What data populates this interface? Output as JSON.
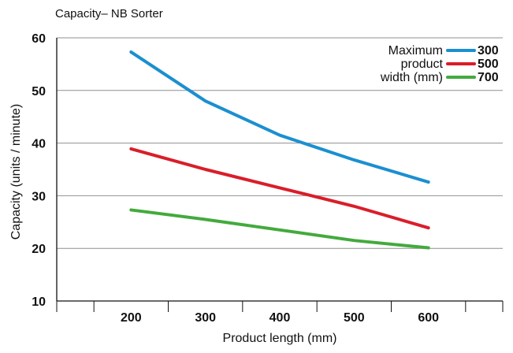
{
  "chart_data": {
    "type": "line",
    "title": "Capacity– NB Sorter",
    "xlabel": "Product length (mm)",
    "ylabel": "Capacity (units / minute)",
    "x": [
      200,
      300,
      400,
      500,
      600
    ],
    "xlim": [
      100,
      700
    ],
    "ylim": [
      10,
      60
    ],
    "yticks": [
      10,
      20,
      30,
      40,
      50,
      60
    ],
    "grid": true,
    "legend_title": [
      "Maximum",
      "product",
      "width (mm)"
    ],
    "legend_position": "top-right",
    "series": [
      {
        "name": "300",
        "color": "#1b8fd0",
        "values": [
          57.3,
          48.0,
          41.5,
          36.8,
          32.6
        ]
      },
      {
        "name": "500",
        "color": "#d91e2a",
        "values": [
          38.9,
          35.0,
          31.5,
          28.0,
          23.9
        ]
      },
      {
        "name": "700",
        "color": "#43aa3d",
        "values": [
          27.3,
          25.5,
          23.5,
          21.5,
          20.1
        ]
      }
    ]
  }
}
